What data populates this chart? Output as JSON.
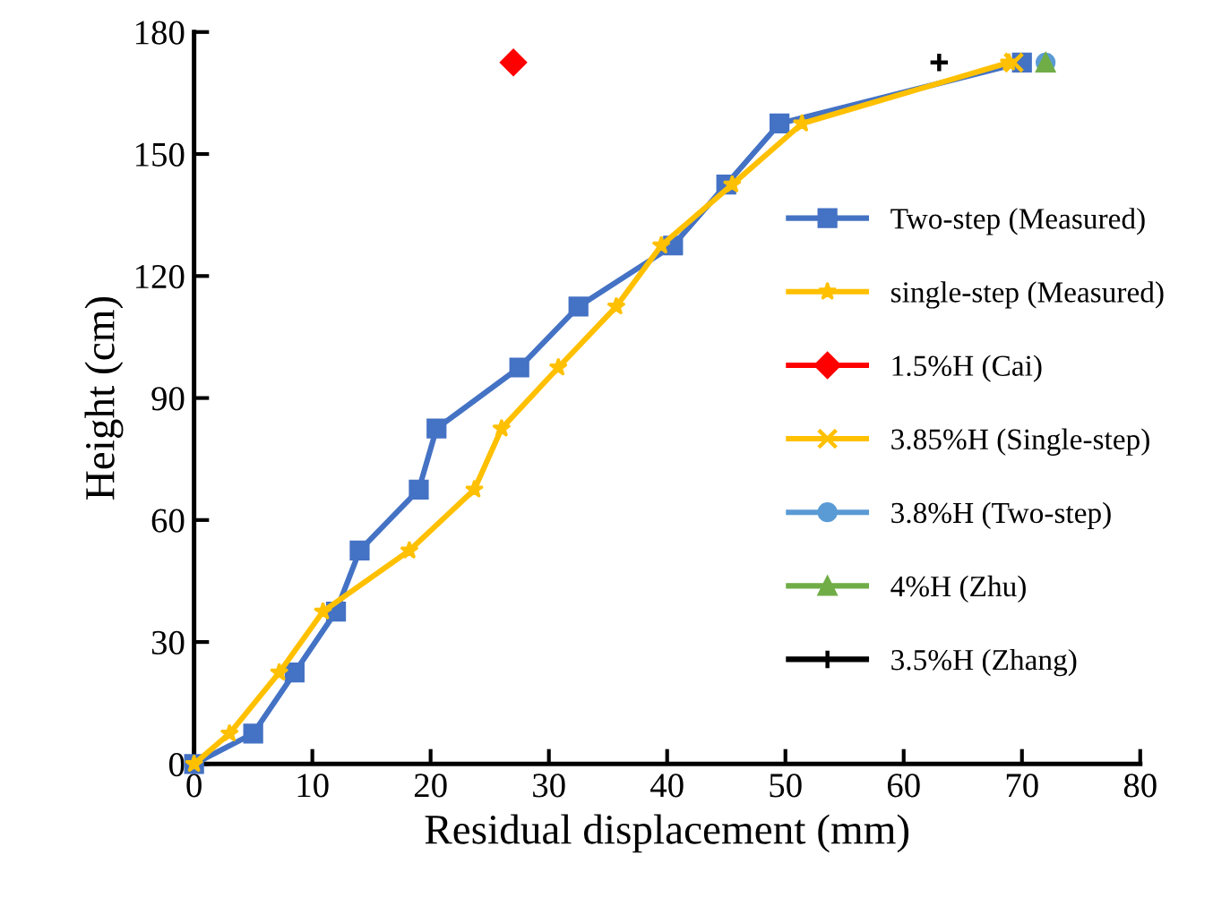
{
  "chart_data": {
    "type": "line",
    "xlabel": "Residual displacement (mm)",
    "ylabel": "Height (cm)",
    "xlim": [
      0,
      80
    ],
    "xticks": [
      0,
      10,
      20,
      30,
      40,
      50,
      60,
      70,
      80
    ],
    "ylim": [
      0,
      180
    ],
    "yticks": [
      0,
      30,
      60,
      90,
      120,
      150,
      180
    ],
    "grid": false,
    "legend": "right",
    "series": [
      {
        "name": "Two-step (Measured)",
        "color": "#4472c4",
        "marker": "square",
        "x": [
          0,
          5,
          8.5,
          12,
          14,
          19,
          20.5,
          27.5,
          32.5,
          40.5,
          45,
          49.5,
          70
        ],
        "values": [
          0,
          7.5,
          22.5,
          37.5,
          52.5,
          67.5,
          82.5,
          97.5,
          112.5,
          127.5,
          142.5,
          157.5,
          172.5
        ]
      },
      {
        "name": "single-step (Measured)",
        "color": "#ffc000",
        "marker": "star",
        "x": [
          0,
          3,
          7.2,
          10.9,
          18.2,
          23.7,
          26,
          30.8,
          35.7,
          39.5,
          45.5,
          51.4,
          68.9
        ],
        "values": [
          0,
          7.5,
          22.5,
          37.5,
          52.5,
          67.5,
          82.5,
          97.5,
          112.5,
          127.5,
          142.5,
          157.5,
          172.5
        ]
      },
      {
        "name": "1.5%H (Cai)",
        "type": "scatter",
        "color": "#ff0000",
        "marker": "diamond",
        "x": [
          27
        ],
        "values": [
          172.5
        ]
      },
      {
        "name": "3.85%H (Single-step)",
        "type": "scatter",
        "color": "#ffc000",
        "marker": "cross",
        "x": [
          69.3
        ],
        "values": [
          172.5
        ]
      },
      {
        "name": "3.8%H (Two-step)",
        "type": "scatter",
        "color": "#5b9bd5",
        "marker": "circle",
        "x": [
          72
        ],
        "values": [
          172.5
        ]
      },
      {
        "name": "4%H (Zhu)",
        "type": "scatter",
        "color": "#70ad47",
        "marker": "triangle",
        "x": [
          72
        ],
        "values": [
          172.5
        ]
      },
      {
        "name": "3.5%H (Zhang)",
        "type": "scatter",
        "color": "#000000",
        "marker": "plus",
        "x": [
          63
        ],
        "values": [
          172.5
        ]
      }
    ]
  }
}
